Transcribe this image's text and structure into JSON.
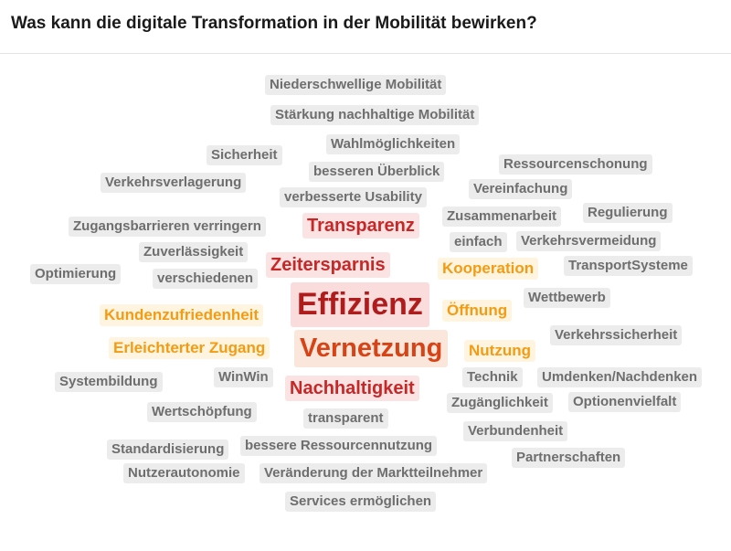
{
  "header": {
    "title": "Was kann die digitale Transformation in der Mobilität bewirken?"
  },
  "words": [
    {
      "text": "Niederschwellige Mobilität",
      "weight": 1
    },
    {
      "text": "Stärkung nachhaltige Mobilität",
      "weight": 1
    },
    {
      "text": "Sicherheit",
      "weight": 1
    },
    {
      "text": "Wahlmöglichkeiten",
      "weight": 1
    },
    {
      "text": "besseren Überblick",
      "weight": 1
    },
    {
      "text": "Ressourcenschonung",
      "weight": 1
    },
    {
      "text": "Verkehrsverlagerung",
      "weight": 1
    },
    {
      "text": "verbesserte Usability",
      "weight": 1
    },
    {
      "text": "Vereinfachung",
      "weight": 1
    },
    {
      "text": "Zugangsbarrieren verringern",
      "weight": 1
    },
    {
      "text": "Transparenz",
      "weight": 3
    },
    {
      "text": "Zusammenarbeit",
      "weight": 1
    },
    {
      "text": "Regulierung",
      "weight": 1
    },
    {
      "text": "Zuverlässigkeit",
      "weight": 1
    },
    {
      "text": "einfach",
      "weight": 1
    },
    {
      "text": "Verkehrsvermeidung",
      "weight": 1
    },
    {
      "text": "Zeitersparnis",
      "weight": 3
    },
    {
      "text": "Kooperation",
      "weight": 2
    },
    {
      "text": "TransportSysteme",
      "weight": 1
    },
    {
      "text": "Optimierung",
      "weight": 1
    },
    {
      "text": "verschiedenen",
      "weight": 1
    },
    {
      "text": "Wettbewerb",
      "weight": 1
    },
    {
      "text": "Effizienz",
      "weight": 5
    },
    {
      "text": "Kundenzufriedenheit",
      "weight": 2
    },
    {
      "text": "Öffnung",
      "weight": 2
    },
    {
      "text": "Verkehrssicherheit",
      "weight": 1
    },
    {
      "text": "Erleichterter Zugang",
      "weight": 2
    },
    {
      "text": "Vernetzung",
      "weight": 4
    },
    {
      "text": "Nutzung",
      "weight": 2
    },
    {
      "text": "Systembildung",
      "weight": 1
    },
    {
      "text": "WinWin",
      "weight": 1
    },
    {
      "text": "Technik",
      "weight": 1
    },
    {
      "text": "Umdenken/Nachdenken",
      "weight": 1
    },
    {
      "text": "Nachhaltigkeit",
      "weight": 3
    },
    {
      "text": "Zugänglichkeit",
      "weight": 1
    },
    {
      "text": "Optionenvielfalt",
      "weight": 1
    },
    {
      "text": "Wertschöpfung",
      "weight": 1
    },
    {
      "text": "transparent",
      "weight": 1
    },
    {
      "text": "Verbundenheit",
      "weight": 1
    },
    {
      "text": "Standardisierung",
      "weight": 1
    },
    {
      "text": "bessere Ressourcennutzung",
      "weight": 1
    },
    {
      "text": "Partnerschaften",
      "weight": 1
    },
    {
      "text": "Nutzerautonomie",
      "weight": 1
    },
    {
      "text": "Veränderung der Marktteilnehmer",
      "weight": 1
    },
    {
      "text": "Services ermöglichen",
      "weight": 1
    }
  ]
}
